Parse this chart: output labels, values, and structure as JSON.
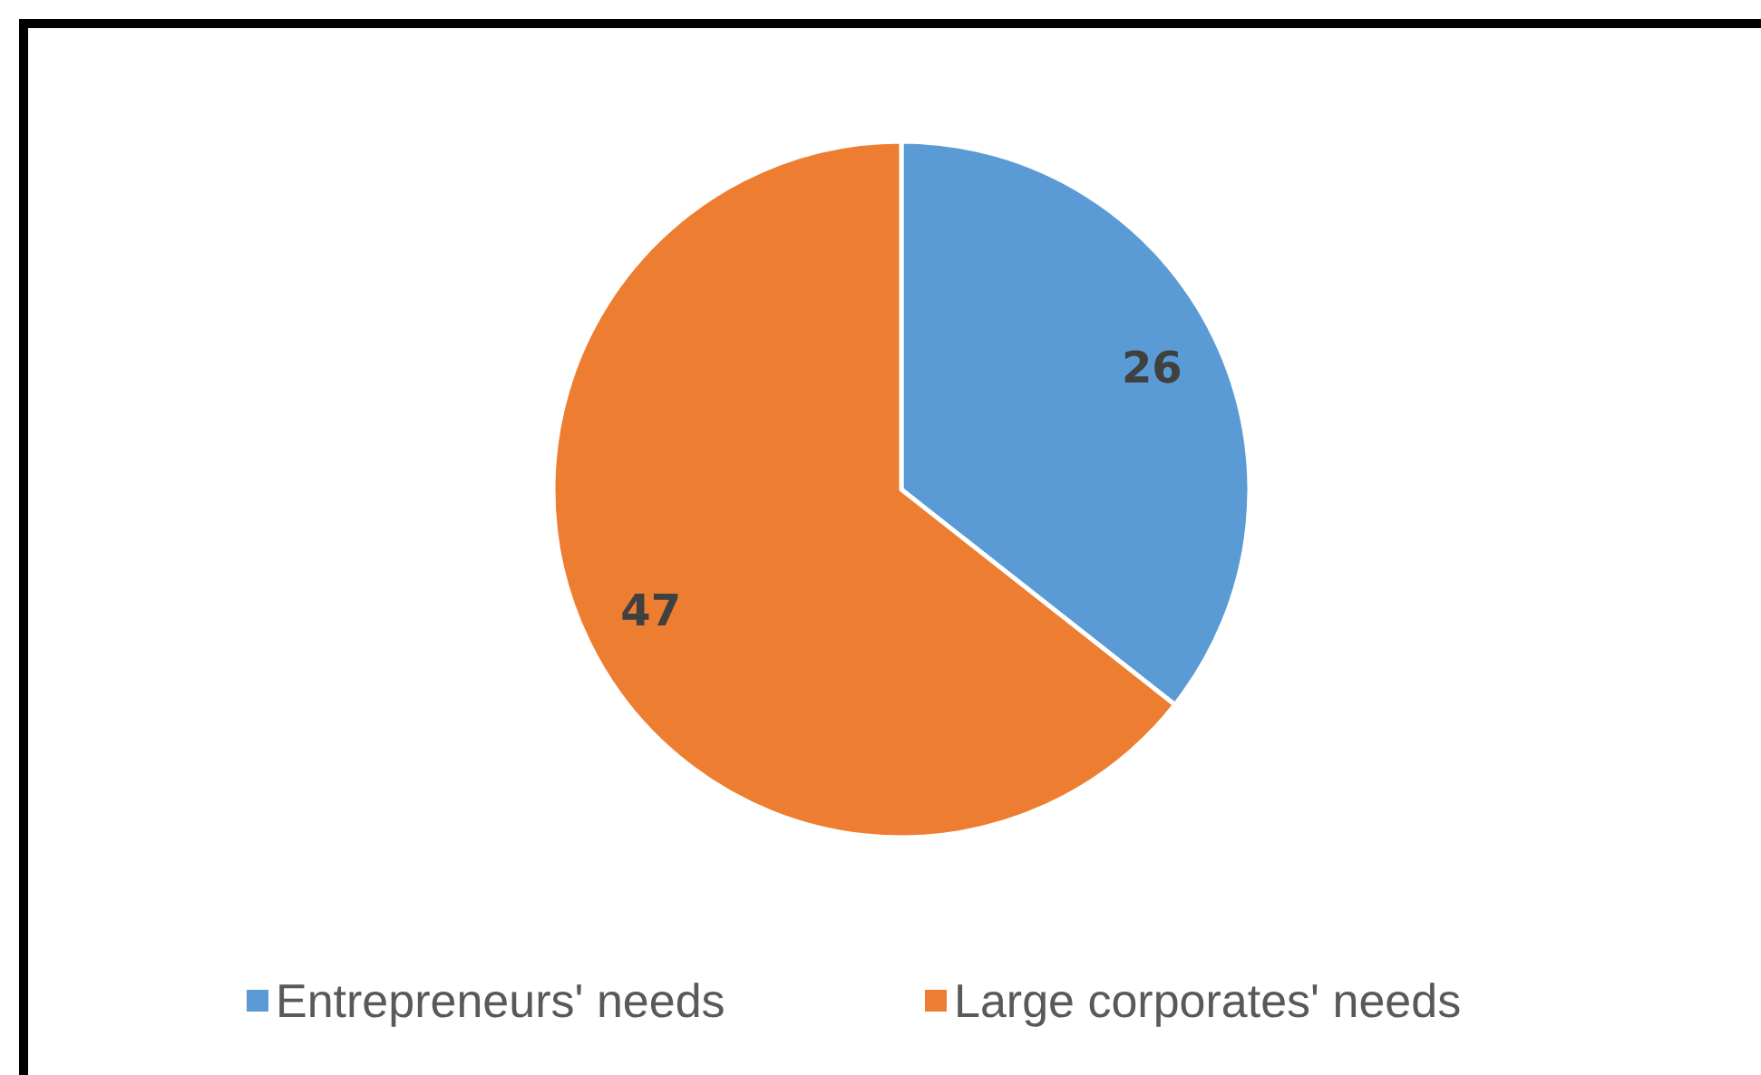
{
  "chart_data": {
    "type": "pie",
    "categories": [
      "Entrepreneurs' needs",
      "Large corporates' needs"
    ],
    "values": [
      26,
      47
    ],
    "colors": [
      "#5b9bd5",
      "#ed7d31"
    ],
    "data_labels": true,
    "legend": "bottom"
  }
}
